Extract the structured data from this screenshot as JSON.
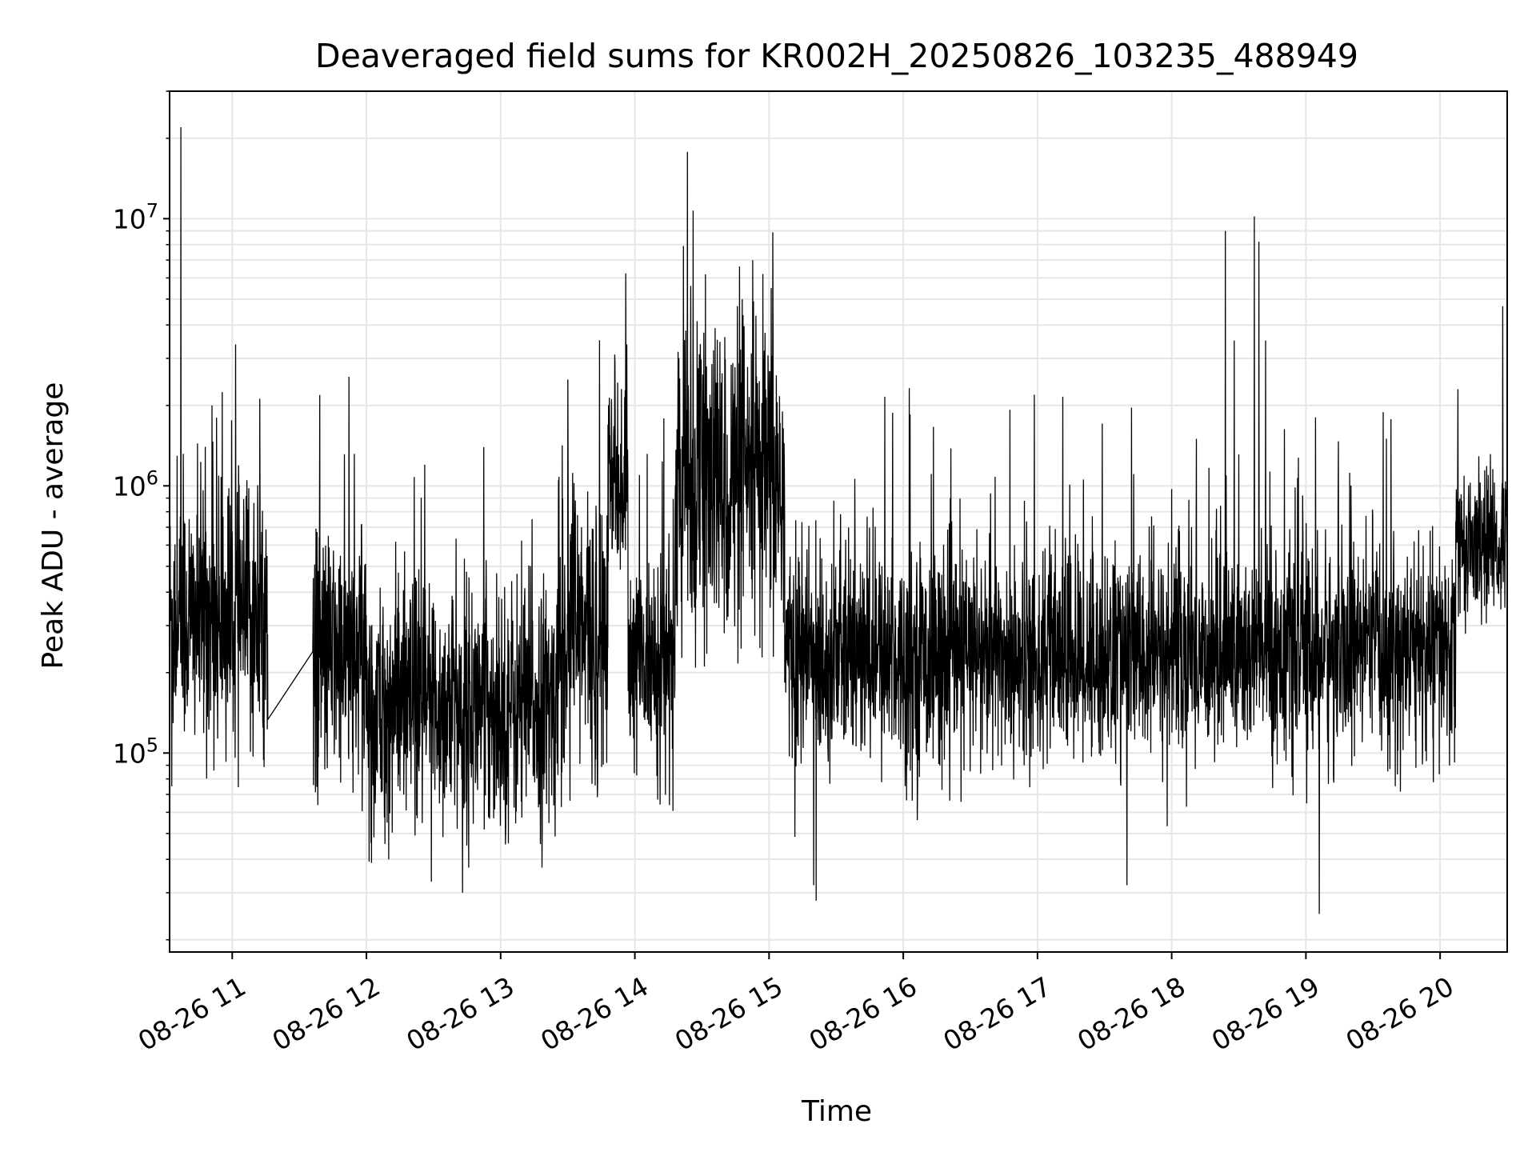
{
  "chart_data": {
    "type": "line",
    "title": "Deaveraged field sums for KR002H_20250826_103235_488949",
    "xlabel": "Time",
    "ylabel": "Peak ADU - average",
    "y_scale": "log",
    "ylim": [
      18000,
      30000000
    ],
    "xlim": [
      "2025-08-26 10:32",
      "2025-08-26 20:30"
    ],
    "grid": true,
    "line_color": "#000000",
    "grid_color": "#e6e6e6",
    "x_ticks": [
      {
        "label": "08-26 11",
        "t": "2025-08-26 11:00"
      },
      {
        "label": "08-26 12",
        "t": "2025-08-26 12:00"
      },
      {
        "label": "08-26 13",
        "t": "2025-08-26 13:00"
      },
      {
        "label": "08-26 14",
        "t": "2025-08-26 14:00"
      },
      {
        "label": "08-26 15",
        "t": "2025-08-26 15:00"
      },
      {
        "label": "08-26 16",
        "t": "2025-08-26 16:00"
      },
      {
        "label": "08-26 17",
        "t": "2025-08-26 17:00"
      },
      {
        "label": "08-26 18",
        "t": "2025-08-26 18:00"
      },
      {
        "label": "08-26 19",
        "t": "2025-08-26 19:00"
      },
      {
        "label": "08-26 20",
        "t": "2025-08-26 20:00"
      }
    ],
    "y_ticks": [
      {
        "base": "10",
        "exp": "5",
        "value": 100000
      },
      {
        "base": "10",
        "exp": "6",
        "value": 1000000
      },
      {
        "base": "10",
        "exp": "7",
        "value": 10000000
      }
    ],
    "series": [
      {
        "segments": [
          {
            "t_start": "2025-08-26 10:32",
            "t_end": "2025-08-26 11:16",
            "median": 320000,
            "noise": 0.45,
            "low_clip": 70000
          },
          {
            "t_start": "2025-08-26 11:36",
            "t_end": "2025-08-26 12:00",
            "median": 230000,
            "noise": 0.42,
            "low_clip": 60000
          },
          {
            "t_start": "2025-08-26 12:00",
            "t_end": "2025-08-26 13:25",
            "median": 150000,
            "noise": 0.42,
            "low_clip": 30000
          },
          {
            "t_start": "2025-08-26 13:25",
            "t_end": "2025-08-26 13:48",
            "median": 270000,
            "noise": 0.5,
            "low_clip": 60000
          },
          {
            "t_start": "2025-08-26 13:48",
            "t_end": "2025-08-26 13:57",
            "median": 1000000,
            "noise": 0.35,
            "low_clip": 500000
          },
          {
            "t_start": "2025-08-26 13:57",
            "t_end": "2025-08-26 14:18",
            "median": 220000,
            "noise": 0.38,
            "low_clip": 60000
          },
          {
            "t_start": "2025-08-26 14:18",
            "t_end": "2025-08-26 15:07",
            "median": 1000000,
            "noise": 0.55,
            "low_clip": 50000
          },
          {
            "t_start": "2025-08-26 15:07",
            "t_end": "2025-08-26 18:00",
            "median": 230000,
            "noise": 0.37,
            "low_clip": 35000
          },
          {
            "t_start": "2025-08-26 18:00",
            "t_end": "2025-08-26 20:07",
            "median": 240000,
            "noise": 0.37,
            "low_clip": 25000
          },
          {
            "t_start": "2025-08-26 20:07",
            "t_end": "2025-08-26 20:30",
            "median": 600000,
            "noise": 0.25,
            "low_clip": 200000
          }
        ],
        "spikes": [
          {
            "t": "2025-08-26 10:37",
            "value": 22000000
          },
          {
            "t": "2025-08-26 10:48",
            "value": 1400000
          },
          {
            "t": "2025-08-26 10:51",
            "value": 2000000
          },
          {
            "t": "2025-08-26 10:53",
            "value": 1800000
          },
          {
            "t": "2025-08-26 12:26",
            "value": 1200000
          },
          {
            "t": "2025-08-26 13:14",
            "value": 750000
          },
          {
            "t": "2025-08-26 13:30",
            "value": 2500000
          },
          {
            "t": "2025-08-26 13:51",
            "value": 3100000
          },
          {
            "t": "2025-08-26 14:25",
            "value": 5600000
          },
          {
            "t": "2025-08-26 14:32",
            "value": 2800000
          },
          {
            "t": "2025-08-26 14:48",
            "value": 5000000
          },
          {
            "t": "2025-08-26 14:53",
            "value": 4900000
          },
          {
            "t": "2025-08-26 15:01",
            "value": 5500000
          },
          {
            "t": "2025-08-26 15:06",
            "value": 1900000
          },
          {
            "t": "2025-08-26 15:29",
            "value": 880000
          },
          {
            "t": "2025-08-26 16:03",
            "value": 1850000
          },
          {
            "t": "2025-08-26 18:11",
            "value": 1500000
          },
          {
            "t": "2025-08-26 18:24",
            "value": 9000000
          },
          {
            "t": "2025-08-26 18:28",
            "value": 3500000
          },
          {
            "t": "2025-08-26 18:37",
            "value": 10200000
          },
          {
            "t": "2025-08-26 18:39",
            "value": 8200000
          },
          {
            "t": "2025-08-26 18:42",
            "value": 3500000
          },
          {
            "t": "2025-08-26 20:08",
            "value": 2300000
          },
          {
            "t": "2025-08-26 20:28",
            "value": 4700000
          }
        ],
        "dips": [
          {
            "t": "2025-08-26 10:33",
            "value": 75000
          },
          {
            "t": "2025-08-26 12:10",
            "value": 40000
          },
          {
            "t": "2025-08-26 12:29",
            "value": 33000
          },
          {
            "t": "2025-08-26 12:43",
            "value": 30000
          },
          {
            "t": "2025-08-26 15:20",
            "value": 32000
          },
          {
            "t": "2025-08-26 15:21",
            "value": 28000
          },
          {
            "t": "2025-08-26 17:40",
            "value": 32000
          },
          {
            "t": "2025-08-26 19:06",
            "value": 25000
          }
        ]
      }
    ]
  }
}
